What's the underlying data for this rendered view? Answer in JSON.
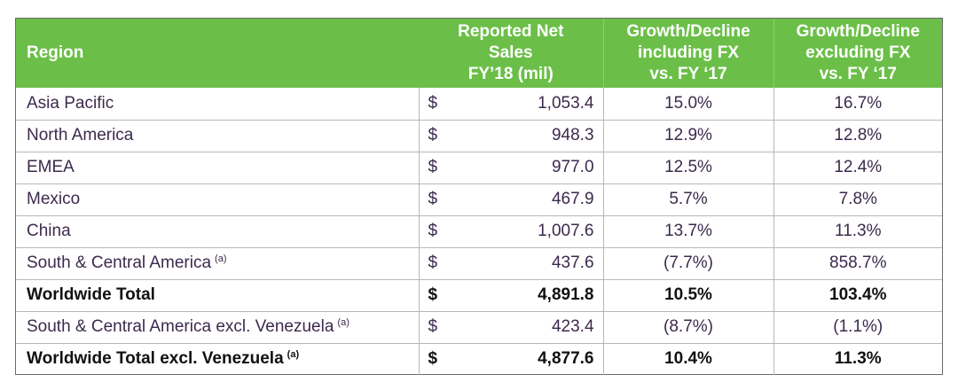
{
  "table": {
    "headers": {
      "region": "Region",
      "sales": [
        "Reported Net",
        "Sales",
        "FY’18 (mil)"
      ],
      "incl_fx": [
        "Growth/Decline",
        "including FX",
        "vs. FY ‘17"
      ],
      "excl_fx": [
        "Growth/Decline",
        "excluding FX",
        "vs.  FY ‘17"
      ]
    },
    "rows": [
      {
        "region": "Asia Pacific",
        "note": "",
        "currency": "$",
        "sales": "1,053.4",
        "incl_fx": "15.0%",
        "excl_fx": "16.7%",
        "bold": false
      },
      {
        "region": "North America",
        "note": "",
        "currency": "$",
        "sales": "948.3",
        "incl_fx": "12.9%",
        "excl_fx": "12.8%",
        "bold": false
      },
      {
        "region": "EMEA",
        "note": "",
        "currency": "$",
        "sales": "977.0",
        "incl_fx": "12.5%",
        "excl_fx": "12.4%",
        "bold": false
      },
      {
        "region": "Mexico",
        "note": "",
        "currency": "$",
        "sales": "467.9",
        "incl_fx": "5.7%",
        "excl_fx": "7.8%",
        "bold": false
      },
      {
        "region": "China",
        "note": "",
        "currency": "$",
        "sales": "1,007.6",
        "incl_fx": "13.7%",
        "excl_fx": "11.3%",
        "bold": false
      },
      {
        "region": "South & Central America",
        "note": "(a)",
        "currency": "$",
        "sales": "437.6",
        "incl_fx": "(7.7%)",
        "excl_fx": "858.7%",
        "bold": false
      },
      {
        "region": "Worldwide Total",
        "note": "",
        "currency": "$",
        "sales": "4,891.8",
        "incl_fx": "10.5%",
        "excl_fx": "103.4%",
        "bold": true
      },
      {
        "region": "South & Central America excl. Venezuela",
        "note": "(a)",
        "currency": "$",
        "sales": "423.4",
        "incl_fx": "(8.7%)",
        "excl_fx": "(1.1%)",
        "bold": false
      },
      {
        "region": "Worldwide Total excl. Venezuela",
        "note": "(a)",
        "currency": "$",
        "sales": "4,877.6",
        "incl_fx": "10.4%",
        "excl_fx": "11.3%",
        "bold": true
      }
    ]
  },
  "colors": {
    "header_green": "#6bbf48",
    "header_text": "#ffffff",
    "body_text": "#3c2a4d",
    "total_text": "#111111",
    "grid": "#b8b8b8"
  }
}
